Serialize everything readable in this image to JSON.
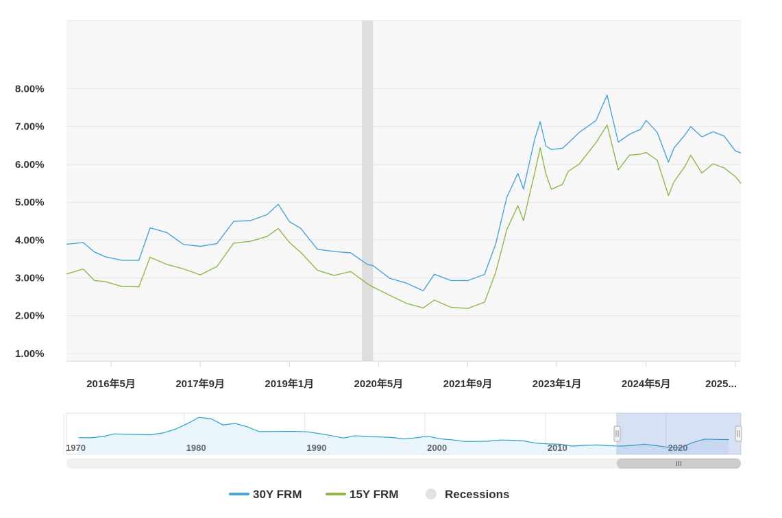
{
  "chart_data": {
    "type": "line",
    "title": "",
    "xlabel": "",
    "ylabel": "",
    "ylim": [
      0.8,
      9.8
    ],
    "y_ticks": [
      "1.00%",
      "2.00%",
      "3.00%",
      "4.00%",
      "5.00%",
      "6.00%",
      "7.00%",
      "8.00%"
    ],
    "y_tick_values": [
      1,
      2,
      3,
      4,
      5,
      6,
      7,
      8
    ],
    "x_ticks": [
      "2016年5月",
      "2017年9月",
      "2019年1月",
      "2020年5月",
      "2021年9月",
      "2023年1月",
      "2024年5月",
      "2025..."
    ],
    "x_tick_dates": [
      "2016-05",
      "2017-09",
      "2019-01",
      "2020-05",
      "2021-09",
      "2023-01",
      "2024-05",
      "2025-09"
    ],
    "x_range": [
      "2015-09",
      "2025-10"
    ],
    "grid": true,
    "legend_position": "bottom",
    "recession_band": [
      "2020-02",
      "2020-04"
    ],
    "series": [
      {
        "name": "30Y FRM",
        "color": "#4aa3d6",
        "dates": [
          "2015-09",
          "2015-12",
          "2016-02",
          "2016-04",
          "2016-07",
          "2016-10",
          "2016-12",
          "2017-03",
          "2017-06",
          "2017-09",
          "2017-12",
          "2018-03",
          "2018-06",
          "2018-09",
          "2018-11",
          "2019-01",
          "2019-03",
          "2019-06",
          "2019-09",
          "2019-12",
          "2020-03",
          "2020-04",
          "2020-07",
          "2020-10",
          "2021-01",
          "2021-03",
          "2021-06",
          "2021-09",
          "2021-12",
          "2022-02",
          "2022-04",
          "2022-06",
          "2022-07",
          "2022-09",
          "2022-10",
          "2022-11",
          "2022-12",
          "2023-02",
          "2023-03",
          "2023-05",
          "2023-08",
          "2023-10",
          "2023-12",
          "2024-02",
          "2024-04",
          "2024-05",
          "2024-07",
          "2024-09",
          "2024-10",
          "2024-12",
          "2025-01",
          "2025-03",
          "2025-05",
          "2025-07",
          "2025-09",
          "2025-10"
        ],
        "values": [
          3.89,
          3.95,
          3.65,
          3.6,
          3.42,
          3.5,
          4.3,
          4.2,
          3.9,
          3.8,
          3.95,
          4.45,
          4.55,
          4.65,
          4.95,
          4.5,
          4.28,
          3.8,
          3.65,
          3.7,
          3.33,
          3.33,
          3.0,
          2.83,
          2.7,
          3.05,
          2.97,
          2.9,
          3.1,
          3.9,
          5.1,
          5.8,
          5.3,
          6.7,
          7.1,
          6.5,
          6.4,
          6.4,
          6.6,
          6.8,
          7.2,
          7.8,
          6.6,
          6.8,
          6.9,
          7.2,
          6.8,
          6.1,
          6.4,
          6.8,
          7.0,
          6.7,
          6.9,
          6.7,
          6.4,
          6.3
        ]
      },
      {
        "name": "15Y FRM",
        "color": "#8db84a",
        "dates": [
          "2015-09",
          "2015-12",
          "2016-02",
          "2016-04",
          "2016-07",
          "2016-10",
          "2016-12",
          "2017-03",
          "2017-06",
          "2017-09",
          "2017-12",
          "2018-03",
          "2018-06",
          "2018-09",
          "2018-11",
          "2019-01",
          "2019-03",
          "2019-06",
          "2019-09",
          "2019-12",
          "2020-03",
          "2020-04",
          "2020-07",
          "2020-10",
          "2021-01",
          "2021-03",
          "2021-06",
          "2021-09",
          "2021-12",
          "2022-02",
          "2022-04",
          "2022-06",
          "2022-07",
          "2022-09",
          "2022-10",
          "2022-11",
          "2022-12",
          "2023-02",
          "2023-03",
          "2023-05",
          "2023-08",
          "2023-10",
          "2023-12",
          "2024-02",
          "2024-04",
          "2024-05",
          "2024-07",
          "2024-09",
          "2024-10",
          "2024-12",
          "2025-01",
          "2025-03",
          "2025-05",
          "2025-07",
          "2025-09",
          "2025-10"
        ],
        "values": [
          3.1,
          3.2,
          2.95,
          2.9,
          2.75,
          2.8,
          3.5,
          3.4,
          3.2,
          3.1,
          3.3,
          3.9,
          4.0,
          4.05,
          4.35,
          3.9,
          3.7,
          3.2,
          3.05,
          3.2,
          2.8,
          2.8,
          2.5,
          2.35,
          2.2,
          2.4,
          2.25,
          2.15,
          2.4,
          3.1,
          4.3,
          4.9,
          4.5,
          5.8,
          6.4,
          5.8,
          5.3,
          5.5,
          5.8,
          6.0,
          6.6,
          7.0,
          5.9,
          6.2,
          6.3,
          6.3,
          6.1,
          5.2,
          5.5,
          6.0,
          6.2,
          5.8,
          6.0,
          5.9,
          5.7,
          5.5
        ]
      }
    ]
  },
  "navigator": {
    "labels": [
      "1970",
      "1980",
      "1990",
      "2000",
      "2010",
      "2020"
    ],
    "label_years": [
      1970,
      1980,
      1990,
      2000,
      2010,
      2020
    ],
    "year_range": [
      1970,
      2026
    ],
    "selection_years": [
      2015.7,
      2026
    ],
    "values_max": 18.5,
    "years": [
      1971,
      1972,
      1973,
      1974,
      1975,
      1976,
      1977,
      1978,
      1979,
      1980,
      1981,
      1982,
      1983,
      1984,
      1985,
      1986,
      1987,
      1988,
      1989,
      1990,
      1991,
      1992,
      1993,
      1994,
      1995,
      1996,
      1997,
      1998,
      1999,
      2000,
      2001,
      2002,
      2003,
      2004,
      2005,
      2006,
      2007,
      2008,
      2009,
      2010,
      2011,
      2012,
      2013,
      2014,
      2015,
      2016,
      2017,
      2018,
      2019,
      2020,
      2021,
      2022,
      2023,
      2024,
      2025
    ],
    "values": [
      7.5,
      7.4,
      8.0,
      9.2,
      9.0,
      8.9,
      8.8,
      9.6,
      11.2,
      13.7,
      16.6,
      16.0,
      13.2,
      13.9,
      12.4,
      10.2,
      10.2,
      10.3,
      10.3,
      10.1,
      9.3,
      8.4,
      7.3,
      8.4,
      7.9,
      7.8,
      7.6,
      6.9,
      7.4,
      8.1,
      7.0,
      6.5,
      5.8,
      5.8,
      5.9,
      6.4,
      6.3,
      6.0,
      5.0,
      4.7,
      4.5,
      3.7,
      4.0,
      4.2,
      3.9,
      3.7,
      4.0,
      4.5,
      3.9,
      3.1,
      3.0,
      5.3,
      6.8,
      6.7,
      6.6
    ]
  },
  "legend": {
    "items": [
      {
        "label": "30Y FRM",
        "color": "#4aa3d6"
      },
      {
        "label": "15Y FRM",
        "color": "#8db84a"
      },
      {
        "label": "Recessions",
        "color": "#e2e2e2"
      }
    ]
  }
}
